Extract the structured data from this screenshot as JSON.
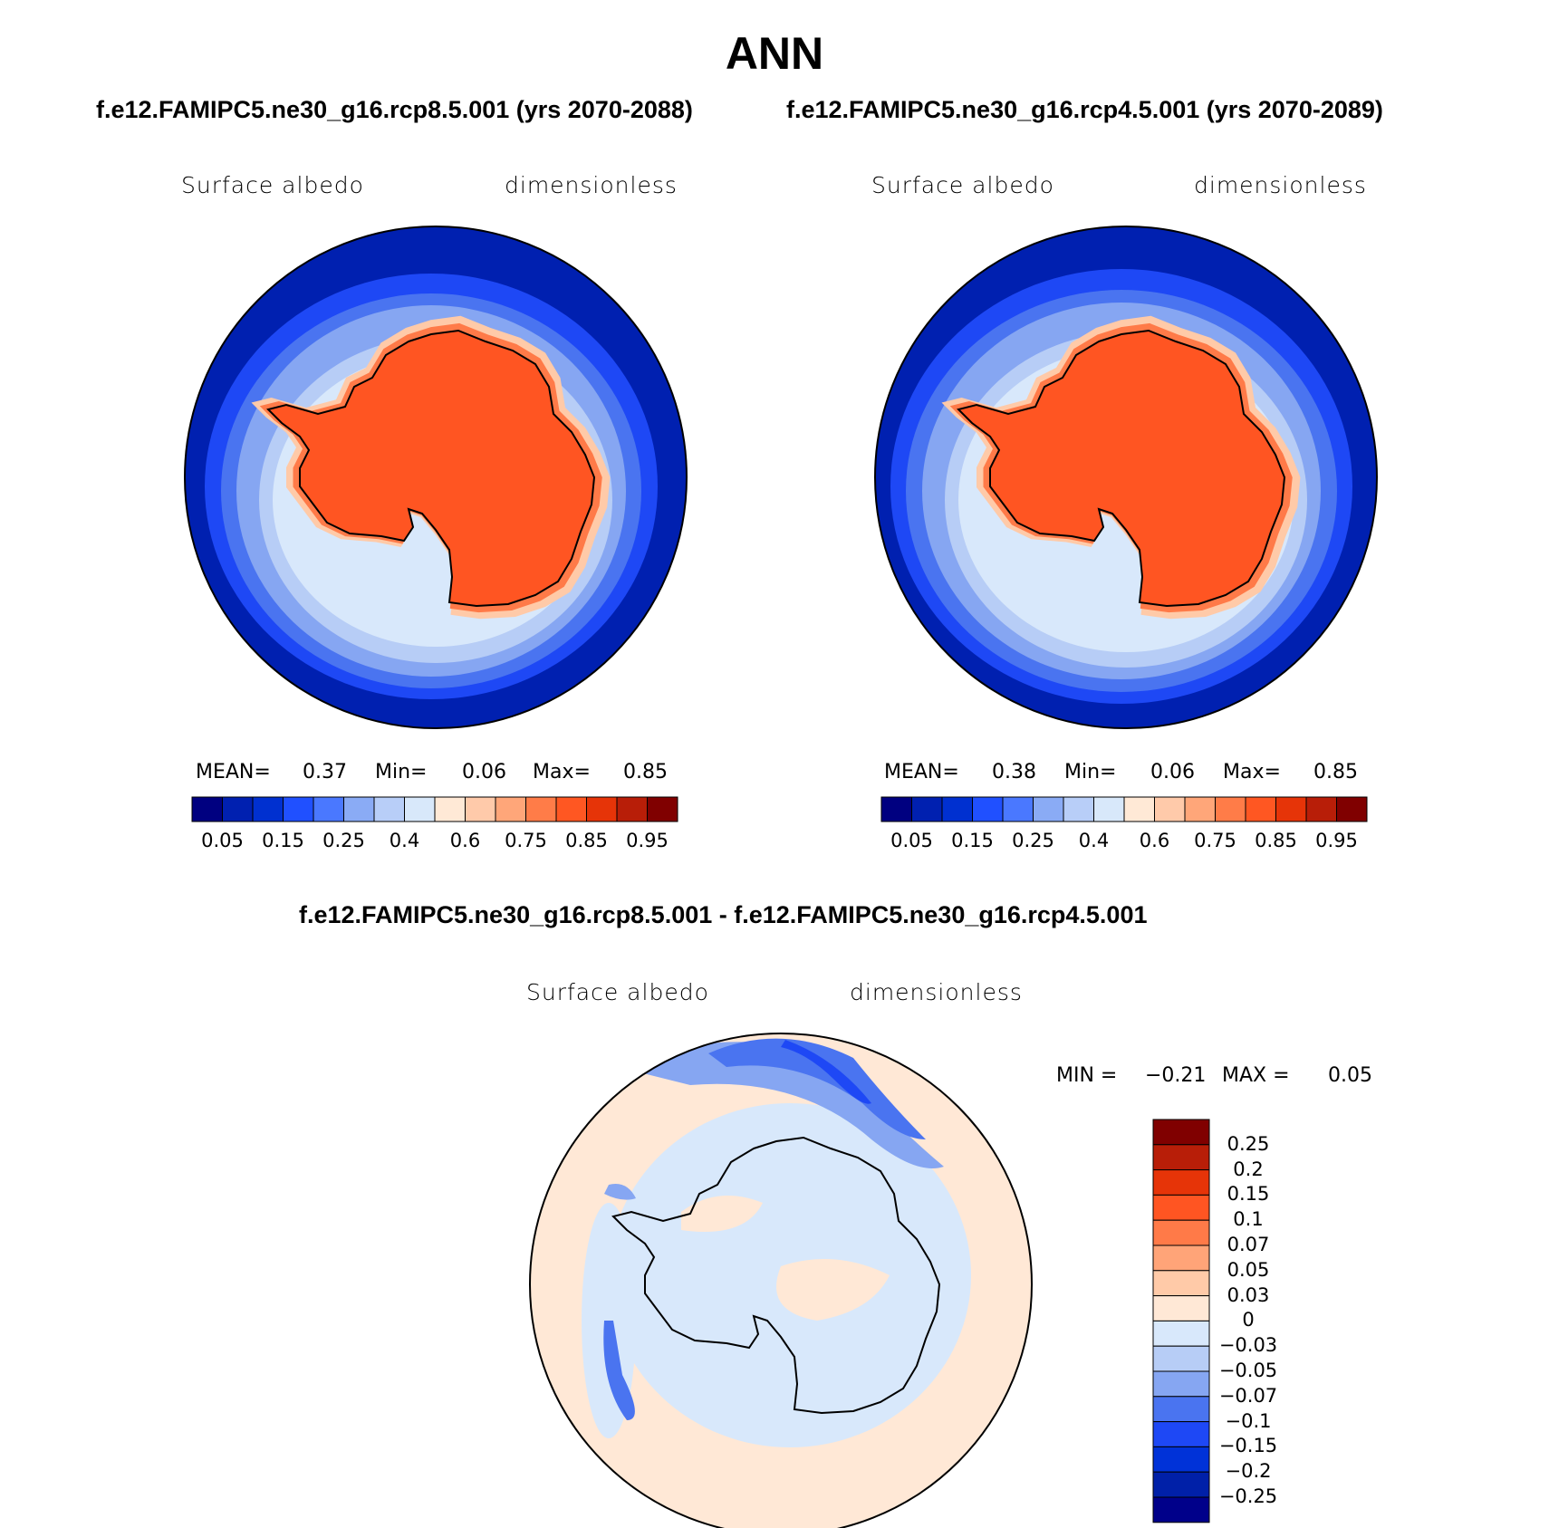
{
  "title": "ANN",
  "panels": [
    {
      "case_label": "f.e12.FAMIPC5.ne30_g16.rcp8.5.001 (yrs 2070-2088)",
      "variable": "Surface albedo",
      "units": "dimensionless",
      "stats": {
        "mean_label": "MEAN=",
        "mean": "0.37",
        "min_label": "Min=",
        "min": "0.06",
        "max_label": "Max=",
        "max": "0.85"
      }
    },
    {
      "case_label": "f.e12.FAMIPC5.ne30_g16.rcp4.5.001 (yrs 2070-2089)",
      "variable": "Surface albedo",
      "units": "dimensionless",
      "stats": {
        "mean_label": "MEAN=",
        "mean": "0.38",
        "min_label": "Min=",
        "min": "0.06",
        "max_label": "Max=",
        "max": "0.85"
      }
    }
  ],
  "colorbar": {
    "colors": [
      "#000080",
      "#0020b0",
      "#0030d0",
      "#2050ff",
      "#4a78ff",
      "#8aabf5",
      "#b8cef8",
      "#d8e8fa",
      "#ffe9d6",
      "#ffcaaa",
      "#ffa679",
      "#ff7c48",
      "#ff5722",
      "#e63408",
      "#b81e08",
      "#800000"
    ],
    "tick_labels": [
      "0.05",
      "0.15",
      "0.25",
      "0.4",
      "0.6",
      "0.75",
      "0.85",
      "0.95"
    ]
  },
  "difference": {
    "title": "f.e12.FAMIPC5.ne30_g16.rcp8.5.001 - f.e12.FAMIPC5.ne30_g16.rcp4.5.001",
    "variable": "Surface albedo",
    "units": "dimensionless",
    "min_label": "MIN =",
    "min": "−0.21",
    "max_label": "MAX =",
    "max": "0.05",
    "colorbar": {
      "colors": [
        "#00008a",
        "#0020a8",
        "#0032d8",
        "#1e48f5",
        "#4a74f0",
        "#86a6f2",
        "#b7cdf6",
        "#d8e8fb",
        "#ffe8d6",
        "#ffcaa8",
        "#ffa478",
        "#ff7a48",
        "#ff5522",
        "#e63408",
        "#b81e08",
        "#800000"
      ],
      "labels": [
        "0.25",
        "0.2",
        "0.15",
        "0.1",
        "0.07",
        "0.05",
        "0.03",
        "0",
        "−0.03",
        "−0.05",
        "−0.07",
        "−0.1",
        "−0.15",
        "−0.2",
        "−0.25"
      ]
    }
  }
}
